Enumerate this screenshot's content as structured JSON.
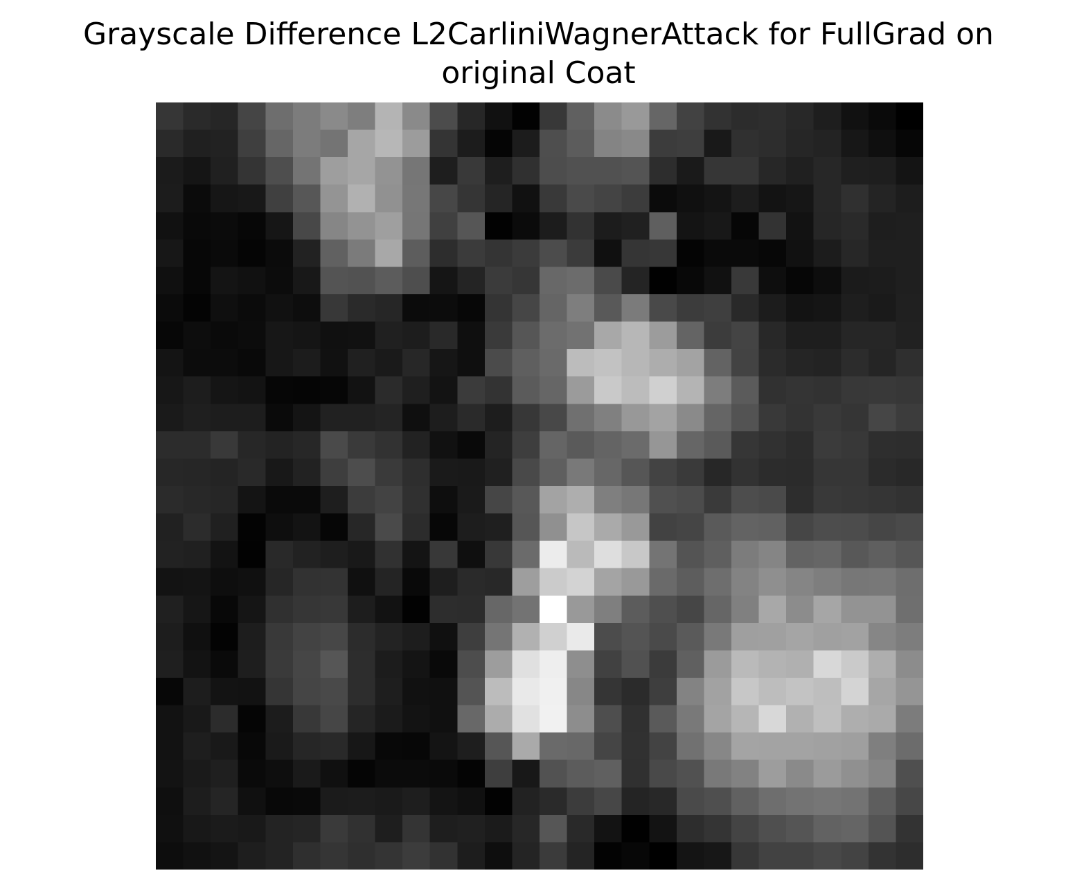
{
  "chart_data": {
    "type": "heatmap",
    "title_lines": [
      "Grayscale Difference L2CarliniWagnerAttack for FullGrad on",
      "original Coat"
    ],
    "colormap": "gray",
    "axes_visible": false,
    "rows": 28,
    "cols": 28,
    "values": [
      [
        54,
        42,
        38,
        69,
        110,
        124,
        138,
        126,
        180,
        138,
        76,
        39,
        17,
        2,
        56,
        96,
        139,
        153,
        102,
        66,
        50,
        44,
        46,
        40,
        30,
        17,
        10,
        0
      ],
      [
        42,
        32,
        34,
        63,
        102,
        124,
        116,
        166,
        183,
        156,
        52,
        28,
        5,
        28,
        78,
        92,
        132,
        137,
        60,
        62,
        25,
        48,
        45,
        38,
        35,
        23,
        15,
        6
      ],
      [
        27,
        21,
        32,
        52,
        78,
        116,
        158,
        166,
        147,
        118,
        30,
        57,
        30,
        48,
        77,
        81,
        81,
        84,
        45,
        26,
        54,
        54,
        39,
        32,
        39,
        31,
        30,
        20
      ],
      [
        28,
        11,
        22,
        24,
        64,
        87,
        148,
        177,
        145,
        119,
        71,
        53,
        37,
        17,
        57,
        74,
        68,
        60,
        11,
        16,
        20,
        29,
        19,
        22,
        39,
        48,
        36,
        29
      ],
      [
        17,
        9,
        11,
        7,
        22,
        72,
        134,
        147,
        159,
        118,
        64,
        86,
        2,
        11,
        28,
        50,
        28,
        32,
        95,
        20,
        24,
        6,
        51,
        18,
        38,
        42,
        30,
        31
      ],
      [
        23,
        7,
        10,
        5,
        11,
        34,
        97,
        123,
        168,
        93,
        45,
        59,
        52,
        59,
        76,
        59,
        16,
        53,
        55,
        4,
        10,
        10,
        7,
        17,
        28,
        39,
        31,
        31
      ],
      [
        16,
        7,
        20,
        17,
        12,
        24,
        84,
        82,
        92,
        78,
        21,
        36,
        59,
        54,
        104,
        108,
        74,
        36,
        1,
        8,
        17,
        57,
        14,
        6,
        13,
        27,
        28,
        31
      ],
      [
        11,
        4,
        15,
        11,
        17,
        13,
        56,
        42,
        38,
        11,
        12,
        7,
        52,
        70,
        101,
        126,
        89,
        123,
        73,
        60,
        63,
        41,
        28,
        19,
        21,
        30,
        26,
        32
      ],
      [
        7,
        13,
        10,
        12,
        23,
        21,
        16,
        17,
        32,
        29,
        41,
        15,
        58,
        86,
        108,
        114,
        168,
        183,
        156,
        100,
        60,
        68,
        40,
        30,
        30,
        38,
        38,
        33
      ],
      [
        20,
        12,
        12,
        9,
        23,
        28,
        17,
        32,
        26,
        39,
        22,
        15,
        75,
        95,
        106,
        188,
        194,
        183,
        173,
        163,
        99,
        67,
        43,
        37,
        35,
        44,
        37,
        47
      ],
      [
        23,
        29,
        21,
        19,
        6,
        5,
        6,
        18,
        43,
        31,
        19,
        59,
        51,
        91,
        102,
        155,
        201,
        188,
        208,
        180,
        125,
        91,
        49,
        52,
        50,
        56,
        57,
        55
      ],
      [
        26,
        31,
        29,
        29,
        10,
        20,
        33,
        33,
        36,
        15,
        29,
        42,
        29,
        55,
        72,
        112,
        128,
        152,
        163,
        138,
        101,
        83,
        57,
        51,
        57,
        53,
        70,
        60
      ],
      [
        44,
        44,
        57,
        39,
        35,
        39,
        74,
        58,
        50,
        34,
        17,
        9,
        36,
        62,
        101,
        90,
        100,
        107,
        150,
        102,
        90,
        54,
        49,
        44,
        59,
        56,
        46,
        45
      ],
      [
        39,
        38,
        36,
        41,
        24,
        34,
        62,
        77,
        58,
        46,
        26,
        25,
        32,
        73,
        95,
        121,
        103,
        86,
        67,
        58,
        39,
        50,
        44,
        43,
        54,
        54,
        43,
        40
      ],
      [
        43,
        40,
        38,
        20,
        10,
        10,
        30,
        60,
        67,
        48,
        14,
        26,
        70,
        88,
        163,
        174,
        127,
        119,
        80,
        76,
        58,
        77,
        74,
        45,
        57,
        55,
        53,
        50
      ],
      [
        33,
        44,
        32,
        3,
        14,
        19,
        6,
        39,
        74,
        44,
        7,
        29,
        31,
        86,
        144,
        198,
        170,
        153,
        66,
        69,
        90,
        99,
        97,
        70,
        77,
        76,
        70,
        74
      ],
      [
        34,
        32,
        19,
        2,
        41,
        34,
        30,
        25,
        49,
        20,
        56,
        15,
        56,
        107,
        236,
        186,
        222,
        200,
        116,
        84,
        95,
        124,
        133,
        99,
        102,
        88,
        95,
        86
      ],
      [
        19,
        20,
        14,
        16,
        38,
        50,
        51,
        16,
        36,
        9,
        30,
        42,
        40,
        158,
        203,
        211,
        164,
        153,
        106,
        93,
        110,
        131,
        143,
        133,
        126,
        119,
        120,
        110
      ],
      [
        32,
        22,
        8,
        21,
        48,
        54,
        56,
        29,
        18,
        2,
        45,
        44,
        103,
        115,
        255,
        153,
        127,
        92,
        79,
        70,
        102,
        128,
        168,
        140,
        166,
        147,
        147,
        111
      ],
      [
        29,
        16,
        3,
        29,
        57,
        67,
        71,
        44,
        35,
        29,
        16,
        62,
        117,
        177,
        208,
        234,
        76,
        84,
        74,
        90,
        121,
        159,
        160,
        165,
        160,
        162,
        134,
        125
      ],
      [
        31,
        19,
        10,
        30,
        58,
        70,
        86,
        45,
        28,
        20,
        9,
        77,
        157,
        224,
        238,
        142,
        65,
        81,
        59,
        96,
        155,
        186,
        179,
        176,
        216,
        202,
        174,
        140
      ],
      [
        7,
        29,
        19,
        18,
        53,
        69,
        73,
        45,
        30,
        17,
        16,
        84,
        188,
        233,
        240,
        135,
        53,
        43,
        62,
        131,
        162,
        199,
        189,
        195,
        190,
        212,
        166,
        149
      ],
      [
        18,
        25,
        44,
        5,
        28,
        56,
        70,
        37,
        27,
        19,
        16,
        104,
        172,
        225,
        241,
        141,
        78,
        48,
        90,
        121,
        164,
        182,
        216,
        177,
        191,
        174,
        170,
        124
      ],
      [
        18,
        30,
        25,
        8,
        26,
        38,
        41,
        23,
        8,
        7,
        20,
        30,
        86,
        170,
        106,
        104,
        69,
        49,
        67,
        113,
        135,
        164,
        163,
        163,
        161,
        159,
        127,
        108
      ],
      [
        19,
        26,
        31,
        10,
        14,
        26,
        16,
        5,
        11,
        11,
        10,
        4,
        62,
        24,
        82,
        92,
        96,
        48,
        73,
        81,
        121,
        130,
        157,
        138,
        155,
        144,
        133,
        79
      ],
      [
        15,
        29,
        37,
        16,
        8,
        9,
        27,
        28,
        26,
        30,
        20,
        16,
        2,
        34,
        42,
        60,
        71,
        36,
        40,
        74,
        79,
        97,
        110,
        115,
        118,
        115,
        94,
        71
      ],
      [
        16,
        24,
        27,
        25,
        35,
        37,
        58,
        49,
        30,
        52,
        30,
        32,
        27,
        39,
        86,
        41,
        19,
        1,
        19,
        45,
        52,
        68,
        79,
        85,
        98,
        101,
        84,
        51
      ],
      [
        13,
        17,
        20,
        30,
        35,
        47,
        53,
        47,
        52,
        60,
        50,
        29,
        14,
        36,
        59,
        36,
        3,
        7,
        0,
        20,
        23,
        55,
        66,
        66,
        72,
        67,
        51,
        45
      ]
    ]
  }
}
